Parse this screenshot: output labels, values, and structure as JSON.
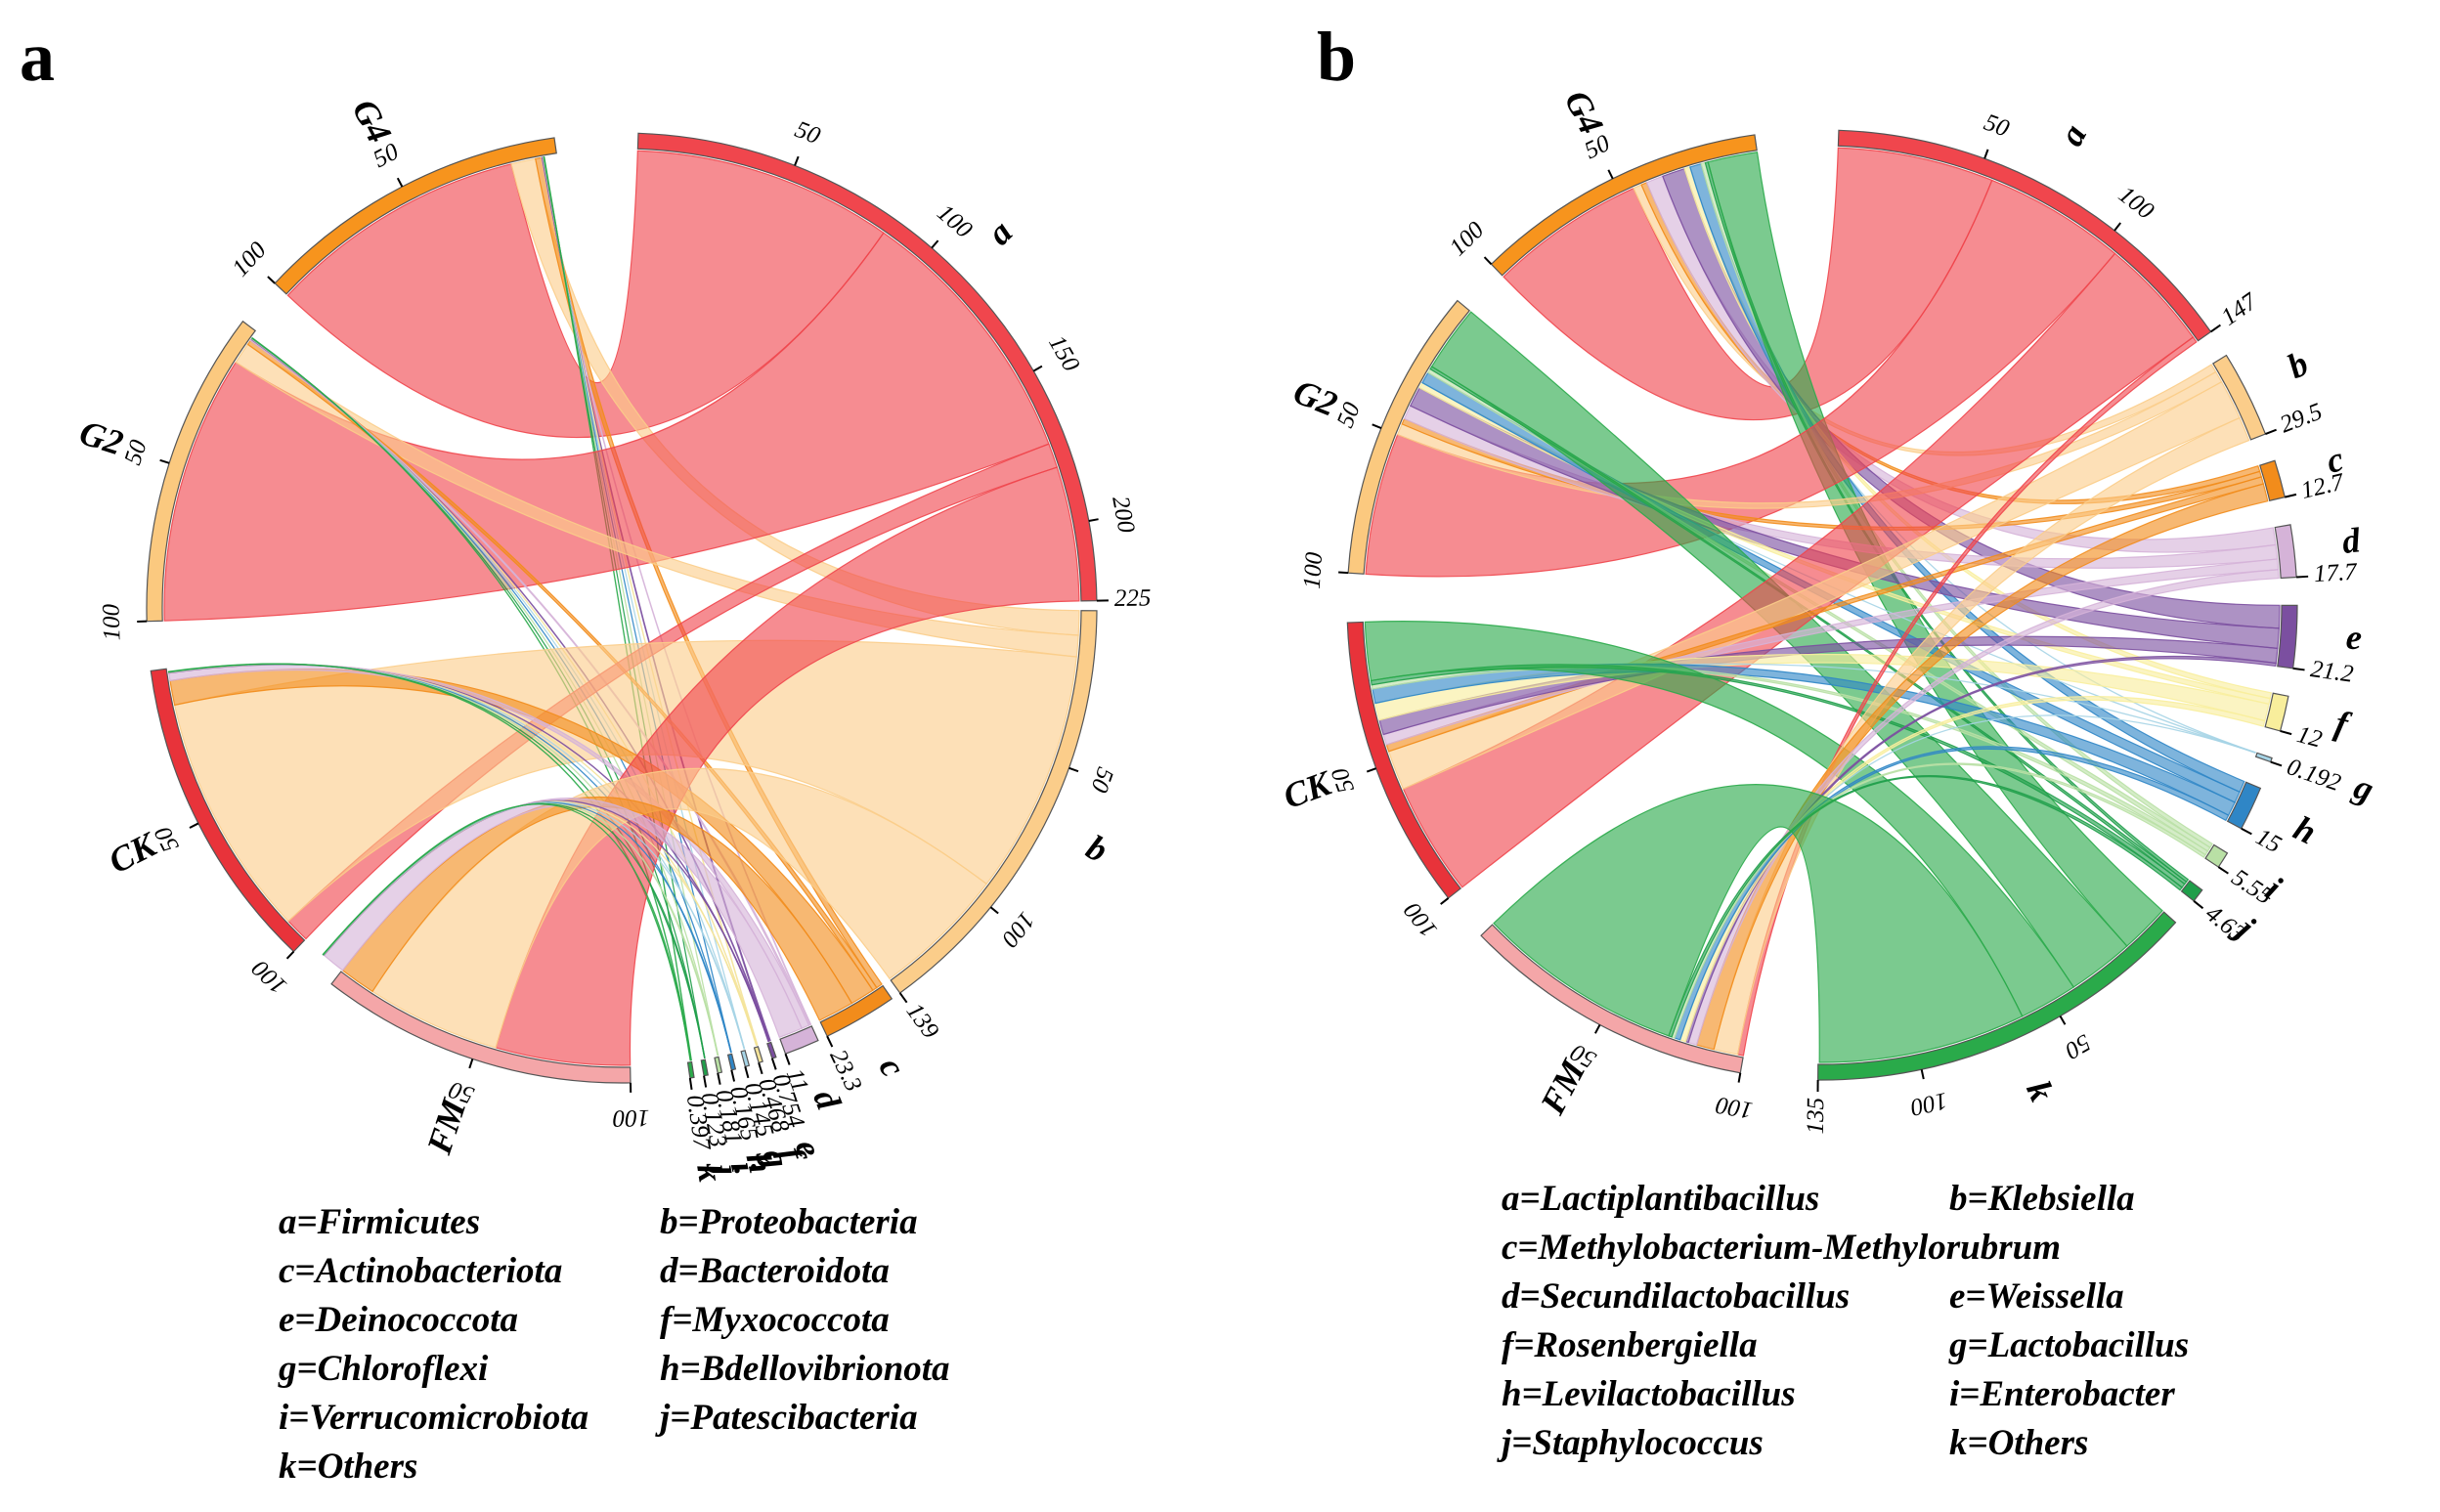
{
  "chart_data": [
    {
      "panel": "a",
      "type": "chord",
      "unit_scale": 1,
      "groups": [
        "G4",
        "G2",
        "CK",
        "FM"
      ],
      "group_totals": [
        100,
        100,
        100,
        100
      ],
      "group_colors": [
        "#f7941d",
        "#fbc97f",
        "#e8333a",
        "#f4a6a8"
      ],
      "categories": [
        {
          "key": "a",
          "name": "Firmicutes",
          "total": 225,
          "color": "#f0464d",
          "value_label": "225"
        },
        {
          "key": "b",
          "name": "Proteobacteria",
          "total": 139,
          "color": "#fbcd8a",
          "value_label": "139"
        },
        {
          "key": "c",
          "name": "Actinobacteriota",
          "total": 23.3,
          "color": "#f28c1b",
          "value_label": "23.3"
        },
        {
          "key": "d",
          "name": "Bacteroidota",
          "total": 11,
          "color": "#d5b3d8",
          "value_label": "11"
        },
        {
          "key": "e",
          "name": "Deinococcota",
          "total": 0.754,
          "color": "#7b4fa0",
          "value_label": "0.754"
        },
        {
          "key": "f",
          "name": "Myxococcota",
          "total": 0.468,
          "color": "#f4e39a",
          "value_label": "0.468"
        },
        {
          "key": "g",
          "name": "Chloroflexi",
          "total": 0.145,
          "color": "#a6d4e6",
          "value_label": "0.145"
        },
        {
          "key": "h",
          "name": "Bdellovibrionota",
          "total": 0.165,
          "color": "#2f86c6",
          "value_label": "0.165"
        },
        {
          "key": "i",
          "name": "Verrucomicrobiota",
          "total": 0.181,
          "color": "#b9e0a5",
          "value_label": "0.181"
        },
        {
          "key": "j",
          "name": "Patescibacteria",
          "total": 0.123,
          "color": "#1f9e4a",
          "value_label": "0.123"
        },
        {
          "key": "k",
          "name": "Others",
          "total": 0.397,
          "color": "#2aaa4a",
          "value_label": "0.397"
        }
      ],
      "matrix": {
        "G4": [
          85,
          8,
          2,
          0.2,
          0.3,
          0.15,
          0.04,
          0.05,
          0.05,
          0.03,
          0.1
        ],
        "G2": [
          88,
          7,
          1.5,
          0.5,
          0.2,
          0.1,
          0.04,
          0.05,
          0.05,
          0.03,
          0.1
        ],
        "CK": [
          8,
          80,
          8,
          2.5,
          0.15,
          0.12,
          0.03,
          0.04,
          0.04,
          0.03,
          0.1
        ],
        "FM": [
          44,
          44,
          11.8,
          7.8,
          0.104,
          0.098,
          0.035,
          0.025,
          0.041,
          0.033,
          0.097
        ]
      },
      "group_ticks": [
        50,
        100
      ],
      "category_ticks": {
        "a": [
          50,
          100,
          150,
          200
        ],
        "b": [
          50,
          100
        ]
      },
      "legend": [
        "a=Firmicutes",
        "b=Proteobacteria",
        "c=Actinobacteriota",
        "d=Bacteroidota",
        "e=Deinococcota",
        "f=Myxococcota",
        "g=Chloroflexi",
        "h=Bdellovibrionota",
        "i=Verrucomicrobiota",
        "j=Patescibacteria",
        "k=Others"
      ]
    },
    {
      "panel": "b",
      "type": "chord",
      "unit_scale": 1,
      "groups": [
        "G4",
        "G2",
        "CK",
        "FM"
      ],
      "group_totals": [
        100,
        100,
        100,
        100
      ],
      "group_colors": [
        "#f7941d",
        "#fbc97f",
        "#e8333a",
        "#f4a6a8"
      ],
      "categories": [
        {
          "key": "a",
          "name": "Lactiplantibacillus",
          "total": 147,
          "color": "#f0464d",
          "value_label": "147"
        },
        {
          "key": "b",
          "name": "Klebsiella",
          "total": 29.5,
          "color": "#fbcd8a",
          "value_label": "29.5"
        },
        {
          "key": "c",
          "name": "Methylobacterium-Methylorubrum",
          "total": 12.7,
          "color": "#f28c1b",
          "value_label": "12.7"
        },
        {
          "key": "d",
          "name": "Secundilactobacillus",
          "total": 17.7,
          "color": "#d5b3d8",
          "value_label": "17.7"
        },
        {
          "key": "e",
          "name": "Weissella",
          "total": 21.2,
          "color": "#7b4fa0",
          "value_label": "21.2"
        },
        {
          "key": "f",
          "name": "Rosenbergiella",
          "total": 12,
          "color": "#f8ee9c",
          "value_label": "12"
        },
        {
          "key": "g",
          "name": "Lactobacillus",
          "total": 0.192,
          "color": "#a6d4e6",
          "value_label": "0.192"
        },
        {
          "key": "h",
          "name": "Levilactobacillus",
          "total": 15,
          "color": "#2f86c6",
          "value_label": "15"
        },
        {
          "key": "i",
          "name": "Enterobacter",
          "total": 5.55,
          "color": "#b9e0a5",
          "value_label": "5.55"
        },
        {
          "key": "j",
          "name": "Staphylococcus",
          "total": 4.63,
          "color": "#1f9e4a",
          "value_label": "4.63"
        },
        {
          "key": "k",
          "name": "Others",
          "total": 135,
          "color": "#2aaa4a",
          "value_label": "135"
        }
      ],
      "matrix": {
        "G4": [
          55,
          3,
          2,
          6,
          8,
          2,
          0.05,
          4,
          1.5,
          1,
          17.45
        ],
        "G2": [
          50,
          4,
          2,
          5,
          7,
          2,
          0.05,
          4,
          1.5,
          1,
          23.45
        ],
        "CK": [
          40,
          14,
          2.5,
          3.7,
          5.2,
          6,
          0.05,
          5,
          1.5,
          1.5,
          20.55
        ],
        "FM": [
          2,
          8.5,
          6.2,
          3,
          1,
          2,
          0.042,
          2,
          1.05,
          1.13,
          73.08
        ]
      },
      "group_ticks": [
        50,
        100
      ],
      "category_ticks": {
        "a": [
          50,
          100
        ],
        "k": [
          50,
          100
        ]
      },
      "legend": [
        "a=Lactiplantibacillus",
        "b=Klebsiella",
        "c=Methylobacterium-Methylorubrum",
        "",
        "d=Secundilactobacillus",
        "e=Weissella",
        "f=Rosenbergiella",
        "g=Lactobacillus",
        "h=Levilactobacillus",
        "i=Enterobacter",
        "j=Staphylococcus",
        "k=Others"
      ]
    }
  ]
}
